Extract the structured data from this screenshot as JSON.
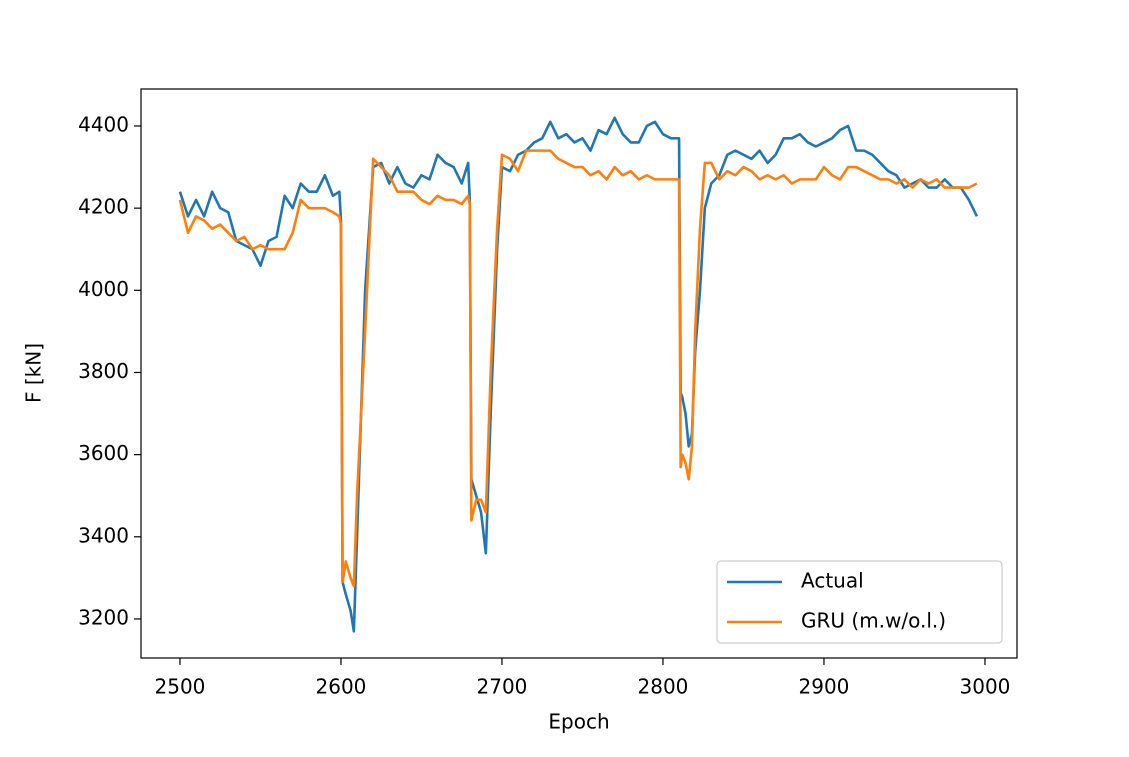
{
  "chart_data": {
    "type": "line",
    "x_label": "Epoch",
    "y_label": "F [kN]",
    "x": [
      2500,
      2505,
      2510,
      2515,
      2520,
      2525,
      2530,
      2535,
      2540,
      2545,
      2550,
      2555,
      2560,
      2565,
      2570,
      2575,
      2580,
      2585,
      2590,
      2595,
      2599,
      2600,
      2601,
      2603,
      2606,
      2608,
      2610,
      2615,
      2620,
      2625,
      2630,
      2635,
      2640,
      2645,
      2650,
      2655,
      2660,
      2665,
      2670,
      2675,
      2679,
      2680,
      2681,
      2684,
      2687,
      2690,
      2693,
      2697,
      2700,
      2705,
      2710,
      2715,
      2720,
      2725,
      2730,
      2735,
      2740,
      2745,
      2750,
      2755,
      2760,
      2765,
      2770,
      2775,
      2780,
      2785,
      2790,
      2795,
      2800,
      2805,
      2810,
      2811,
      2812,
      2814,
      2816,
      2818,
      2820,
      2823,
      2826,
      2830,
      2835,
      2840,
      2845,
      2850,
      2855,
      2860,
      2865,
      2870,
      2875,
      2880,
      2885,
      2890,
      2895,
      2900,
      2905,
      2910,
      2915,
      2920,
      2925,
      2930,
      2935,
      2940,
      2945,
      2950,
      2955,
      2960,
      2965,
      2970,
      2975,
      2980,
      2985,
      2990,
      2995
    ],
    "series": [
      {
        "name": "Actual",
        "color": "#1f77b4",
        "values": [
          4240,
          4180,
          4220,
          4180,
          4240,
          4200,
          4190,
          4120,
          4110,
          4100,
          4060,
          4120,
          4130,
          4230,
          4200,
          4260,
          4240,
          4240,
          4280,
          4230,
          4240,
          4170,
          3290,
          3260,
          3220,
          3170,
          3400,
          4000,
          4300,
          4310,
          4260,
          4300,
          4260,
          4250,
          4280,
          4270,
          4330,
          4310,
          4300,
          4260,
          4310,
          4220,
          3540,
          3500,
          3460,
          3360,
          3700,
          4100,
          4300,
          4290,
          4330,
          4340,
          4360,
          4370,
          4410,
          4370,
          4380,
          4360,
          4370,
          4340,
          4390,
          4380,
          4420,
          4380,
          4360,
          4360,
          4400,
          4410,
          4380,
          4370,
          4370,
          3750,
          3740,
          3700,
          3620,
          3650,
          3850,
          4000,
          4200,
          4260,
          4280,
          4330,
          4340,
          4330,
          4320,
          4340,
          4310,
          4330,
          4370,
          4370,
          4380,
          4360,
          4350,
          4360,
          4370,
          4390,
          4400,
          4340,
          4340,
          4330,
          4310,
          4290,
          4280,
          4250,
          4260,
          4270,
          4250,
          4250,
          4270,
          4250,
          4250,
          4220,
          4180
        ]
      },
      {
        "name": "GRU (m.w/o.l.)",
        "color": "#ff7f0e",
        "values": [
          4220,
          4140,
          4180,
          4170,
          4150,
          4160,
          4140,
          4120,
          4130,
          4100,
          4110,
          4100,
          4100,
          4100,
          4140,
          4220,
          4200,
          4200,
          4200,
          4190,
          4180,
          4160,
          3290,
          3340,
          3300,
          3280,
          3500,
          3900,
          4320,
          4300,
          4280,
          4240,
          4240,
          4240,
          4220,
          4210,
          4230,
          4220,
          4220,
          4210,
          4230,
          4210,
          3440,
          3490,
          3490,
          3460,
          3800,
          4150,
          4330,
          4320,
          4290,
          4340,
          4340,
          4340,
          4340,
          4320,
          4310,
          4300,
          4300,
          4280,
          4290,
          4270,
          4300,
          4280,
          4290,
          4270,
          4280,
          4270,
          4270,
          4270,
          4270,
          3570,
          3600,
          3580,
          3540,
          3620,
          3900,
          4150,
          4310,
          4310,
          4270,
          4290,
          4280,
          4300,
          4290,
          4270,
          4280,
          4270,
          4280,
          4260,
          4270,
          4270,
          4270,
          4300,
          4280,
          4270,
          4300,
          4300,
          4290,
          4280,
          4270,
          4270,
          4260,
          4270,
          4250,
          4270,
          4260,
          4270,
          4250,
          4250,
          4250,
          4250,
          4260
        ]
      }
    ],
    "xlim": [
      2475.8,
      3019.9
    ],
    "ylim": [
      3105,
      4490
    ],
    "xticks": [
      2500,
      2600,
      2700,
      2800,
      2900,
      3000
    ],
    "yticks": [
      3200,
      3400,
      3600,
      3800,
      4000,
      4200,
      4400
    ],
    "grid": false,
    "legend": "lower right"
  }
}
